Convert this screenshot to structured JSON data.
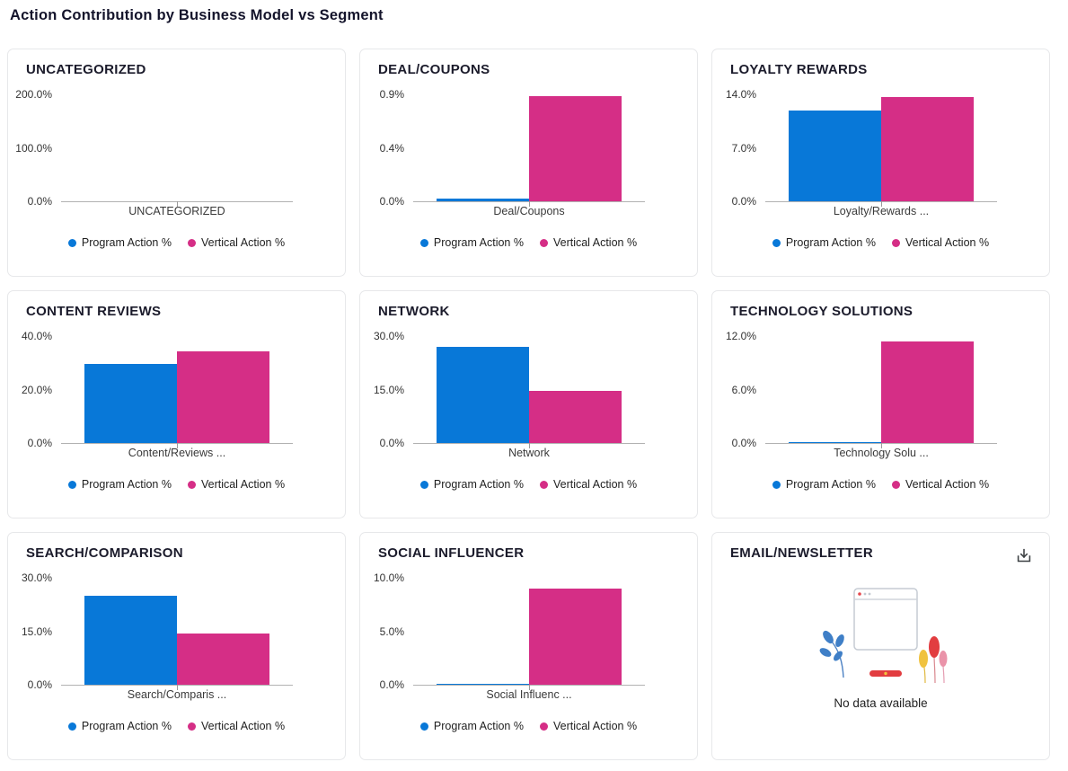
{
  "page_title": "Action Contribution by Business Model vs Segment",
  "colors": {
    "program": "#0878D8",
    "vertical": "#D52E86",
    "axis": "#b2b2b2"
  },
  "legend": [
    "Program Action %",
    "Vertical Action %"
  ],
  "no_data_message": "No data available",
  "chart_data": [
    {
      "type": "bar",
      "title": "UNCATEGORIZED",
      "categories": [
        "UNCATEGORIZED"
      ],
      "y_ticks": [
        "200.0%",
        "100.0%",
        "0.0%"
      ],
      "ylim": [
        0,
        200
      ],
      "grid": false,
      "legend_position": "bottom",
      "series": [
        {
          "name": "Program Action %",
          "values": [
            0
          ]
        },
        {
          "name": "Vertical Action %",
          "values": [
            0
          ]
        }
      ]
    },
    {
      "type": "bar",
      "title": "DEAL/COUPONS",
      "categories": [
        "Deal/Coupons"
      ],
      "y_ticks": [
        "0.9%",
        "0.4%",
        "0.0%"
      ],
      "ylim": [
        0,
        0.9
      ],
      "grid": false,
      "legend_position": "bottom",
      "series": [
        {
          "name": "Program Action %",
          "values": [
            0.02
          ]
        },
        {
          "name": "Vertical Action %",
          "values": [
            0.88
          ]
        }
      ]
    },
    {
      "type": "bar",
      "title": "LOYALTY REWARDS",
      "categories": [
        "Loyalty/Rewards ..."
      ],
      "y_ticks": [
        "14.0%",
        "7.0%",
        "0.0%"
      ],
      "ylim": [
        0,
        14
      ],
      "grid": false,
      "legend_position": "bottom",
      "series": [
        {
          "name": "Program Action %",
          "values": [
            11.8
          ]
        },
        {
          "name": "Vertical Action %",
          "values": [
            13.5
          ]
        }
      ]
    },
    {
      "type": "bar",
      "title": "CONTENT REVIEWS",
      "categories": [
        "Content/Reviews ..."
      ],
      "y_ticks": [
        "40.0%",
        "20.0%",
        "0.0%"
      ],
      "ylim": [
        0,
        40
      ],
      "grid": false,
      "legend_position": "bottom",
      "series": [
        {
          "name": "Program Action %",
          "values": [
            29.3
          ]
        },
        {
          "name": "Vertical Action %",
          "values": [
            34.0
          ]
        }
      ]
    },
    {
      "type": "bar",
      "title": "NETWORK",
      "categories": [
        "Network"
      ],
      "y_ticks": [
        "30.0%",
        "15.0%",
        "0.0%"
      ],
      "ylim": [
        0,
        30
      ],
      "grid": false,
      "legend_position": "bottom",
      "series": [
        {
          "name": "Program Action %",
          "values": [
            26.8
          ]
        },
        {
          "name": "Vertical Action %",
          "values": [
            14.6
          ]
        }
      ]
    },
    {
      "type": "bar",
      "title": "TECHNOLOGY SOLUTIONS",
      "categories": [
        "Technology Solu ..."
      ],
      "y_ticks": [
        "12.0%",
        "6.0%",
        "0.0%"
      ],
      "ylim": [
        0,
        12
      ],
      "grid": false,
      "legend_position": "bottom",
      "series": [
        {
          "name": "Program Action %",
          "values": [
            0.05
          ]
        },
        {
          "name": "Vertical Action %",
          "values": [
            11.3
          ]
        }
      ]
    },
    {
      "type": "bar",
      "title": "SEARCH/COMPARISON",
      "categories": [
        "Search/Comparis ..."
      ],
      "y_ticks": [
        "30.0%",
        "15.0%",
        "0.0%"
      ],
      "ylim": [
        0,
        30
      ],
      "grid": false,
      "legend_position": "bottom",
      "series": [
        {
          "name": "Program Action %",
          "values": [
            24.8
          ]
        },
        {
          "name": "Vertical Action %",
          "values": [
            14.3
          ]
        }
      ]
    },
    {
      "type": "bar",
      "title": "SOCIAL INFLUENCER",
      "categories": [
        "Social Influenc ..."
      ],
      "y_ticks": [
        "10.0%",
        "5.0%",
        "0.0%"
      ],
      "ylim": [
        0,
        10
      ],
      "grid": false,
      "legend_position": "bottom",
      "series": [
        {
          "name": "Program Action %",
          "values": [
            0.03
          ]
        },
        {
          "name": "Vertical Action %",
          "values": [
            8.9
          ]
        }
      ]
    },
    {
      "type": "bar",
      "title": "EMAIL/NEWSLETTER",
      "no_data": true,
      "show_download": true,
      "message": "No data available",
      "categories": [],
      "series": []
    }
  ]
}
